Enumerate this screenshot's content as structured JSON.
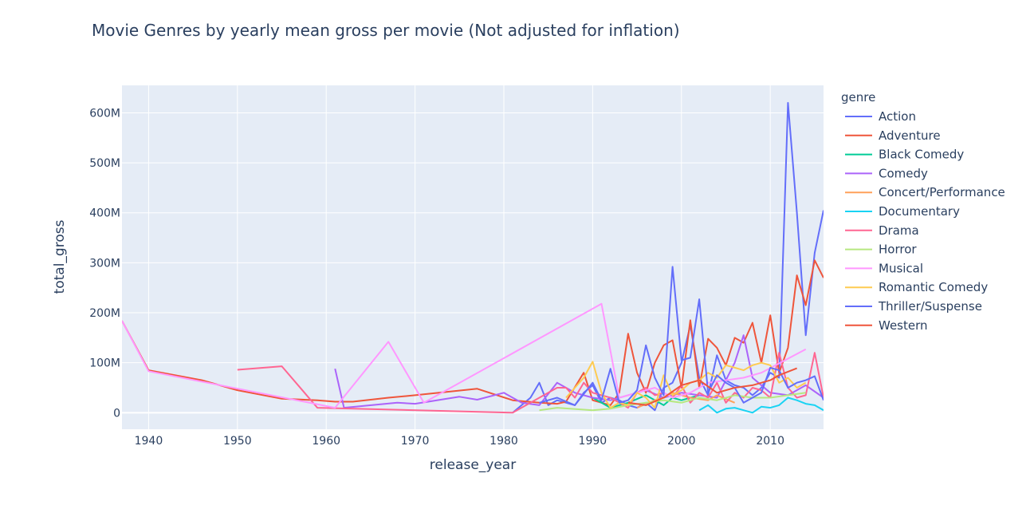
{
  "chart_data": {
    "type": "line",
    "title": "Movie Genres by yearly mean gross per movie (Not adjusted for inflation)",
    "xlabel": "release_year",
    "ylabel": "total_gross",
    "xlim": [
      1937,
      2016
    ],
    "ylim": [
      -33000000,
      655000000
    ],
    "x_ticks": [
      1940,
      1950,
      1960,
      1970,
      1980,
      1990,
      2000,
      2010
    ],
    "y_ticks": [
      0,
      100000000,
      200000000,
      300000000,
      400000000,
      500000000,
      600000000
    ],
    "y_tick_labels": [
      "0",
      "100M",
      "200M",
      "300M",
      "400M",
      "500M",
      "600M"
    ],
    "grid": true,
    "legend_title": "genre",
    "legend_position": "right",
    "series": [
      {
        "name": "Action",
        "color": "#636efa",
        "x": [
          1981,
          1983,
          1984,
          1985,
          1986,
          1987,
          1988,
          1989,
          1990,
          1991,
          1992,
          1993,
          1994,
          1995,
          1996,
          1997,
          1998,
          1999,
          2000,
          2001,
          2002,
          2003,
          2004,
          2005,
          2006,
          2007,
          2008,
          2009,
          2010,
          2011,
          2012,
          2013,
          2014,
          2015,
          2016
        ],
        "y": [
          0,
          30000000,
          60000000,
          15000000,
          25000000,
          20000000,
          15000000,
          40000000,
          55000000,
          20000000,
          30000000,
          25000000,
          15000000,
          10000000,
          20000000,
          5000000,
          50000000,
          60000000,
          100000000,
          175000000,
          70000000,
          35000000,
          115000000,
          65000000,
          55000000,
          50000000,
          35000000,
          50000000,
          80000000,
          70000000,
          620000000,
          400000000,
          155000000,
          320000000,
          405000000
        ]
      },
      {
        "name": "Adventure",
        "color": "#EF553B",
        "x": [
          1937,
          1940,
          1946,
          1950,
          1955,
          1959,
          1961,
          1963,
          1967,
          1970,
          1977,
          1981,
          1984,
          1986,
          1987,
          1989,
          1990,
          1991,
          1992,
          1993,
          1994,
          1995,
          1996,
          1997,
          1998,
          1999,
          2000,
          2001,
          2002,
          2003,
          2004,
          2005,
          2006,
          2007,
          2008,
          2009,
          2010,
          2011,
          2012,
          2013,
          2014,
          2015,
          2016
        ],
        "y": [
          184000000,
          85000000,
          65000000,
          45000000,
          28000000,
          25000000,
          22000000,
          22000000,
          30000000,
          35000000,
          48000000,
          25000000,
          20000000,
          18000000,
          22000000,
          80000000,
          25000000,
          20000000,
          15000000,
          40000000,
          158000000,
          80000000,
          40000000,
          100000000,
          135000000,
          145000000,
          50000000,
          185000000,
          50000000,
          148000000,
          130000000,
          95000000,
          150000000,
          140000000,
          180000000,
          100000000,
          195000000,
          80000000,
          130000000,
          275000000,
          215000000,
          305000000,
          270000000
        ]
      },
      {
        "name": "Black Comedy",
        "color": "#00cc96",
        "x": [
          1990,
          1992,
          1994,
          1996,
          1998,
          1999,
          2000,
          2002
        ],
        "y": [
          30000000,
          10000000,
          20000000,
          35000000,
          15000000,
          30000000,
          25000000,
          35000000
        ]
      },
      {
        "name": "Comedy",
        "color": "#ab63fa",
        "x": [
          1961,
          1962,
          1968,
          1970,
          1975,
          1977,
          1980,
          1982,
          1984,
          1986,
          1988,
          1990,
          1992,
          1994,
          1996,
          1998,
          2000,
          2002,
          2004,
          2006,
          2007,
          2008,
          2010,
          2012,
          2014,
          2016
        ],
        "y": [
          88000000,
          10000000,
          20000000,
          18000000,
          32000000,
          26000000,
          40000000,
          20000000,
          15000000,
          60000000,
          40000000,
          30000000,
          25000000,
          35000000,
          45000000,
          30000000,
          40000000,
          35000000,
          30000000,
          100000000,
          155000000,
          70000000,
          40000000,
          35000000,
          55000000,
          30000000
        ]
      },
      {
        "name": "Concert/Performance",
        "color": "#FFA15A",
        "x": [
          1995,
          1997,
          1998,
          1999,
          2001,
          2003,
          2004,
          2006
        ],
        "y": [
          10000000,
          25000000,
          30000000,
          40000000,
          30000000,
          25000000,
          35000000,
          20000000
        ]
      },
      {
        "name": "Documentary",
        "color": "#19d3f3",
        "x": [
          2002,
          2003,
          2004,
          2005,
          2006,
          2007,
          2008,
          2009,
          2010,
          2011,
          2012,
          2013,
          2014,
          2015,
          2016
        ],
        "y": [
          5000000,
          15000000,
          0,
          8000000,
          10000000,
          5000000,
          0,
          12000000,
          10000000,
          15000000,
          30000000,
          25000000,
          18000000,
          15000000,
          5000000
        ]
      },
      {
        "name": "Drama",
        "color": "#FF6692",
        "x": [
          1950,
          1955,
          1959,
          1981,
          1986,
          1987,
          1988,
          1989,
          1990,
          1991,
          1992,
          1993,
          1994,
          1995,
          1996,
          1997,
          1998,
          1999,
          2000,
          2001,
          2002,
          2003,
          2004,
          2005,
          2006,
          2007,
          2008,
          2009,
          2010,
          2011,
          2012,
          2013,
          2014,
          2015,
          2016
        ],
        "y": [
          86000000,
          93000000,
          10000000,
          0,
          50000000,
          50000000,
          30000000,
          60000000,
          40000000,
          35000000,
          30000000,
          20000000,
          10000000,
          40000000,
          50000000,
          35000000,
          40000000,
          30000000,
          55000000,
          20000000,
          40000000,
          30000000,
          60000000,
          20000000,
          40000000,
          30000000,
          50000000,
          45000000,
          30000000,
          120000000,
          50000000,
          30000000,
          35000000,
          120000000,
          30000000
        ]
      },
      {
        "name": "Horror",
        "color": "#B6E880",
        "x": [
          1984,
          1986,
          1990,
          1992,
          1994,
          1996,
          1998,
          2000,
          2002,
          2004,
          2006,
          2008,
          2010,
          2012,
          2014
        ],
        "y": [
          5000000,
          10000000,
          5000000,
          8000000,
          15000000,
          20000000,
          25000000,
          20000000,
          30000000,
          25000000,
          35000000,
          30000000,
          30000000,
          35000000,
          40000000
        ]
      },
      {
        "name": "Musical",
        "color": "#FF97FF",
        "x": [
          1937,
          1940,
          1961,
          1967,
          1971,
          1991,
          1993,
          1995,
          1997,
          1999,
          2001,
          2003,
          2007,
          2009,
          2014
        ],
        "y": [
          184000000,
          83000000,
          10000000,
          142000000,
          20000000,
          218000000,
          30000000,
          40000000,
          50000000,
          30000000,
          40000000,
          60000000,
          70000000,
          80000000,
          127000000
        ]
      },
      {
        "name": "Romantic Comedy",
        "color": "#FECB52",
        "x": [
          1987,
          1989,
          1990,
          1991,
          1992,
          1993,
          1994,
          1995,
          1996,
          1997,
          1998,
          1999,
          2000,
          2001,
          2002,
          2003,
          2004,
          2005,
          2006,
          2007,
          2008,
          2009,
          2010,
          2011,
          2012,
          2013,
          2014
        ],
        "y": [
          30000000,
          70000000,
          102000000,
          40000000,
          10000000,
          20000000,
          15000000,
          40000000,
          30000000,
          10000000,
          75000000,
          35000000,
          45000000,
          60000000,
          65000000,
          80000000,
          70000000,
          95000000,
          90000000,
          85000000,
          95000000,
          100000000,
          95000000,
          60000000,
          70000000,
          50000000,
          60000000
        ]
      },
      {
        "name": "Thriller/Suspense",
        "color": "#636efa",
        "x": [
          1984,
          1986,
          1988,
          1990,
          1991,
          1992,
          1993,
          1994,
          1995,
          1996,
          1997,
          1998,
          1999,
          2000,
          2001,
          2002,
          2003,
          2004,
          2005,
          2006,
          2007,
          2008,
          2009,
          2010,
          2011,
          2012,
          2013,
          2014,
          2015,
          2016
        ],
        "y": [
          20000000,
          30000000,
          15000000,
          60000000,
          25000000,
          88000000,
          20000000,
          25000000,
          45000000,
          135000000,
          70000000,
          35000000,
          292000000,
          105000000,
          110000000,
          227000000,
          40000000,
          75000000,
          60000000,
          50000000,
          20000000,
          30000000,
          40000000,
          90000000,
          85000000,
          50000000,
          60000000,
          65000000,
          73000000,
          25000000
        ]
      },
      {
        "name": "Western",
        "color": "#EF553B",
        "x": [
          1994,
          1996,
          1998,
          2000,
          2002,
          2004,
          2006,
          2008,
          2010,
          2011,
          2013
        ],
        "y": [
          20000000,
          15000000,
          30000000,
          55000000,
          65000000,
          40000000,
          50000000,
          55000000,
          65000000,
          75000000,
          89000000
        ]
      }
    ]
  }
}
